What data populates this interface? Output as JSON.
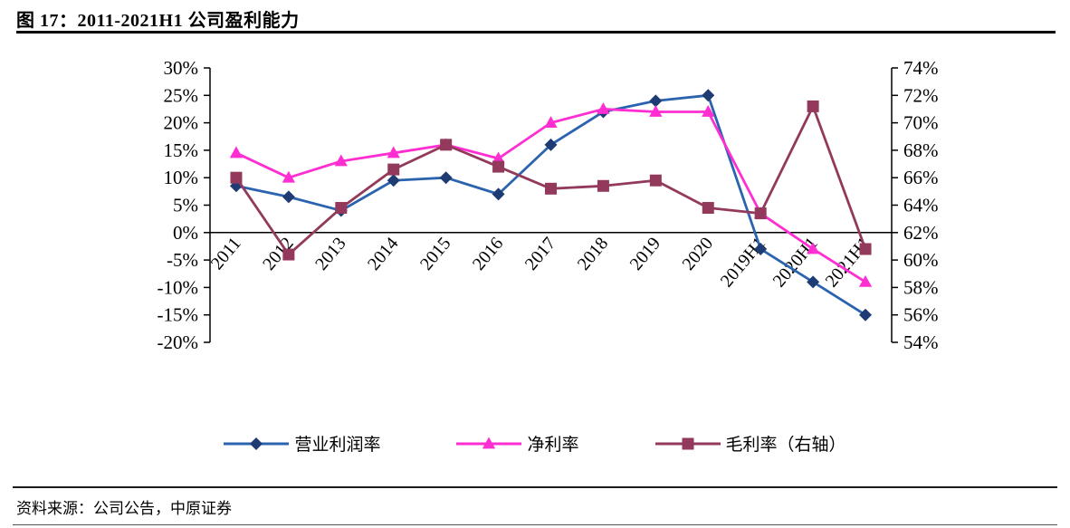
{
  "title": "图 17：2011-2021H1 公司盈利能力",
  "source": "资料来源：公司公告，中原证券",
  "chart_data": {
    "type": "line",
    "title": "2011-2021H1 公司盈利能力",
    "categories": [
      "2011",
      "2012",
      "2013",
      "2014",
      "2015",
      "2016",
      "2017",
      "2018",
      "2019",
      "2020",
      "2019H1",
      "2020H1",
      "2021H1"
    ],
    "series": [
      {
        "id": "operating-margin",
        "name": "营业利润率",
        "axis": "left",
        "marker": "diamond",
        "line_color": "#2B63AE",
        "marker_color": "#1F3B73",
        "values": [
          8.5,
          6.5,
          4,
          9.5,
          10,
          7,
          16,
          22,
          24,
          25,
          -3,
          -9,
          -15
        ]
      },
      {
        "id": "net-margin",
        "name": "净利率",
        "axis": "left",
        "marker": "triangle",
        "line_color": "#FF2ED2",
        "marker_color": "#FF2ED2",
        "values": [
          14.5,
          10,
          13,
          14.5,
          16,
          13.5,
          20,
          22.5,
          22,
          22,
          3.5,
          -3,
          -9
        ]
      },
      {
        "id": "gross-margin-right-axis",
        "name": "毛利率（右轴）",
        "axis": "right",
        "marker": "square",
        "line_color": "#93395B",
        "marker_color": "#93395B",
        "values": [
          66,
          60.4,
          63.8,
          66.6,
          68.4,
          66.8,
          65.2,
          65.4,
          65.8,
          63.8,
          63.4,
          71.2,
          60.8
        ]
      }
    ],
    "left_axis": {
      "min": -20,
      "max": 30,
      "step": 5,
      "suffix": "%"
    },
    "right_axis": {
      "min": 54,
      "max": 74,
      "step": 2,
      "suffix": "%"
    },
    "grid": false,
    "legend_position": "bottom"
  }
}
